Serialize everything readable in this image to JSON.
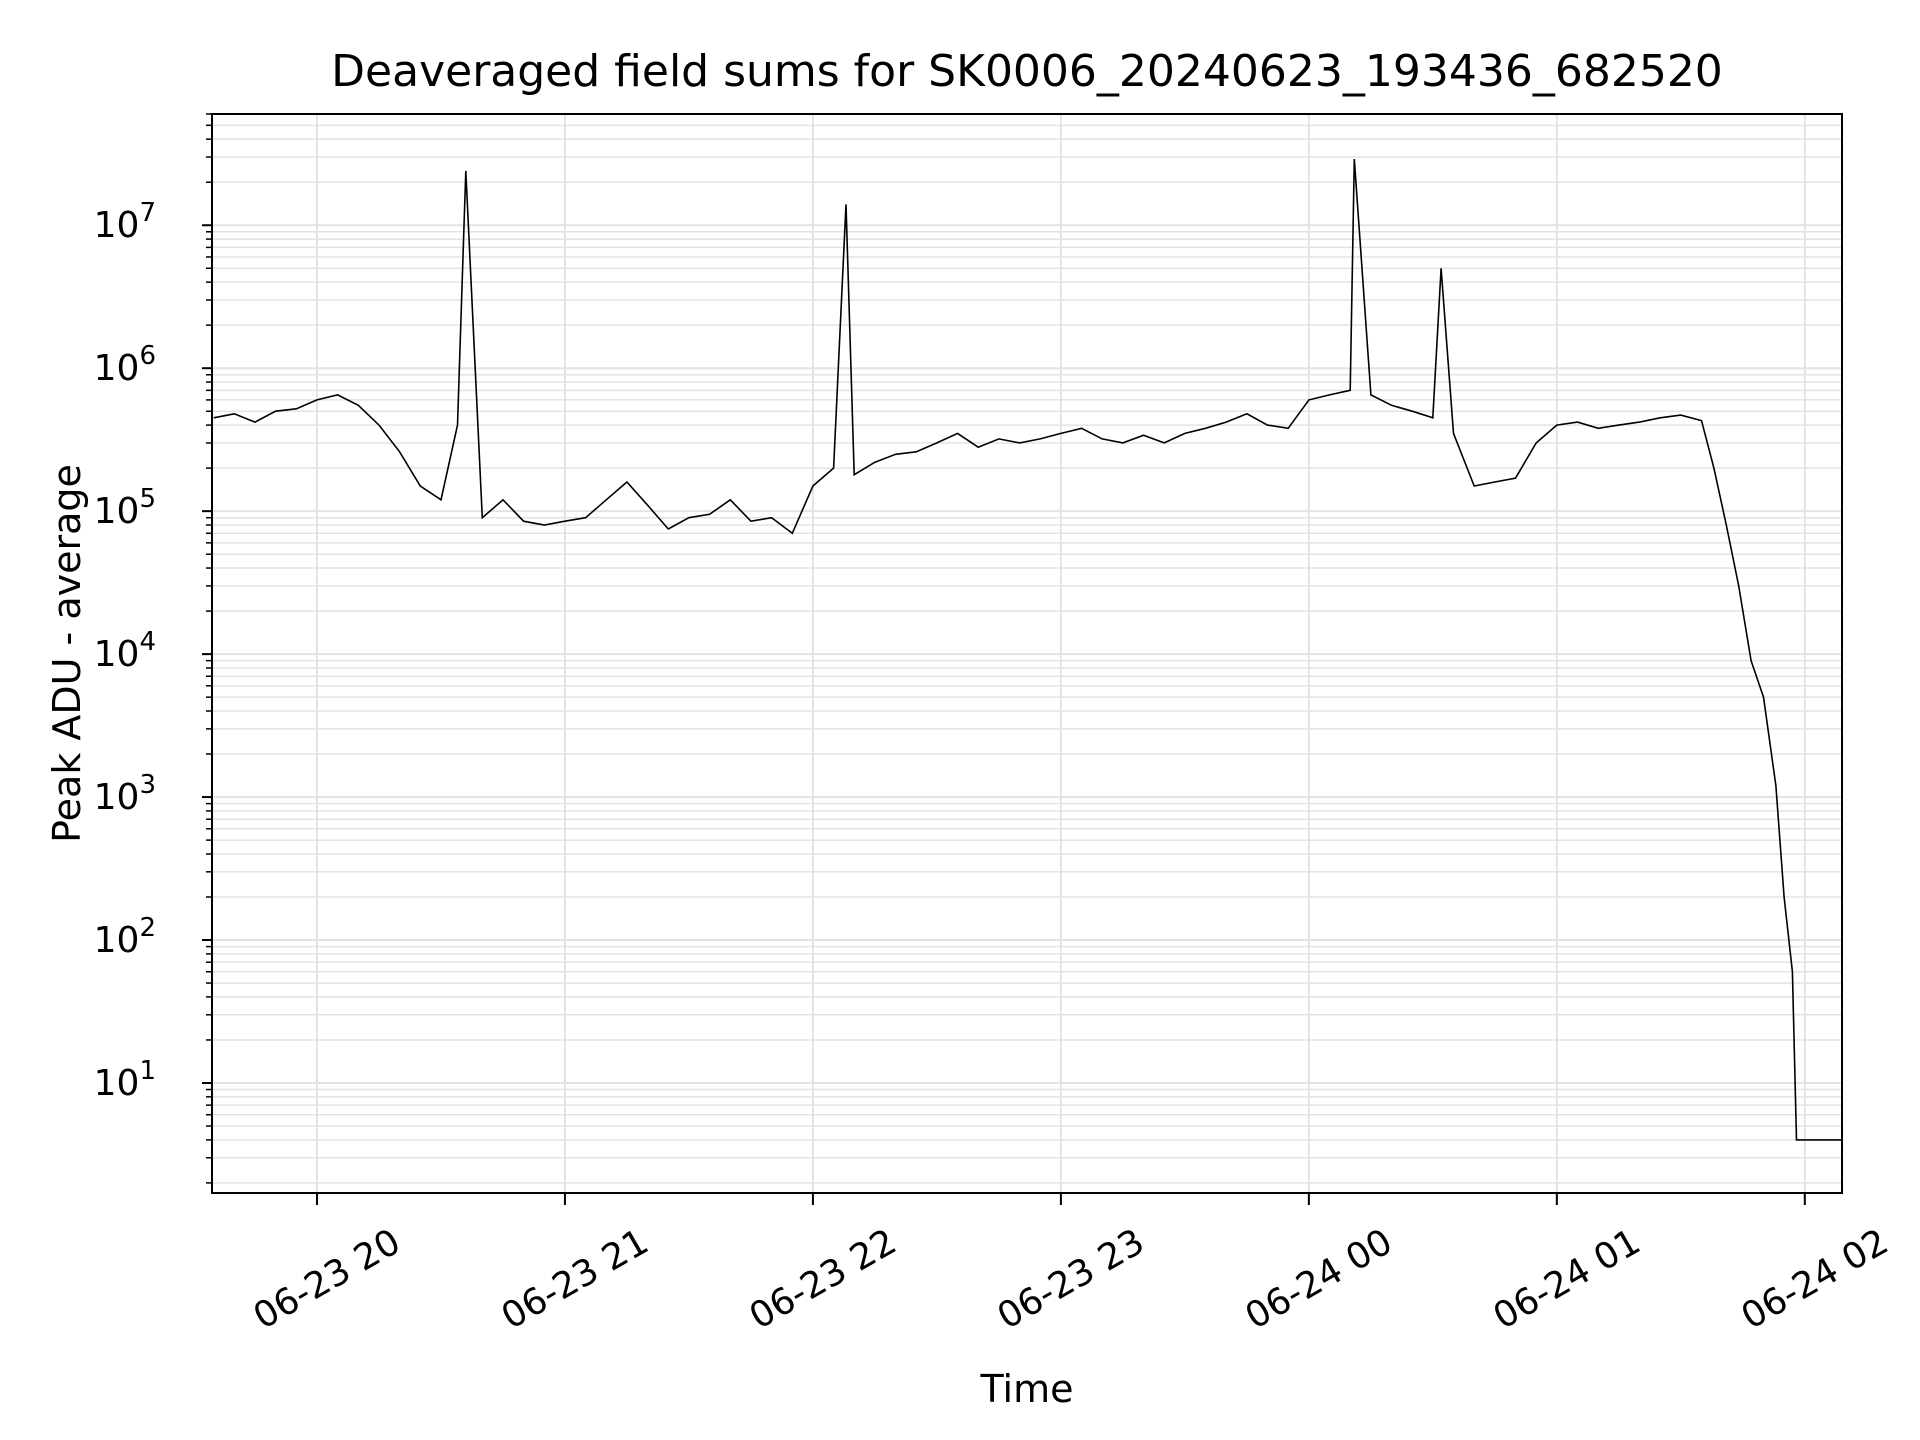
{
  "chart_data": {
    "type": "line",
    "title": "Deaveraged field sums for SK0006_20240623_193436_682520",
    "xlabel": "Time",
    "ylabel": "Peak ADU - average",
    "y_scale": "log",
    "ylim": [
      1.7,
      60000000
    ],
    "xlim": [
      "2024-06-23 19:34:36",
      "2024-06-24 02:09:00"
    ],
    "grid": true,
    "legend": "none",
    "line_color": "#000000",
    "x_ticks": [
      {
        "value": "2024-06-23 20:00",
        "label": "06-23 20"
      },
      {
        "value": "2024-06-23 21:00",
        "label": "06-23 21"
      },
      {
        "value": "2024-06-23 22:00",
        "label": "06-23 22"
      },
      {
        "value": "2024-06-23 23:00",
        "label": "06-23 23"
      },
      {
        "value": "2024-06-24 00:00",
        "label": "06-24 00"
      },
      {
        "value": "2024-06-24 01:00",
        "label": "06-24 01"
      },
      {
        "value": "2024-06-24 02:00",
        "label": "06-24 02"
      }
    ],
    "y_ticks": [
      {
        "value": 10,
        "base": "10",
        "exp": "1"
      },
      {
        "value": 100,
        "base": "10",
        "exp": "2"
      },
      {
        "value": 1000,
        "base": "10",
        "exp": "3"
      },
      {
        "value": 10000,
        "base": "10",
        "exp": "4"
      },
      {
        "value": 100000,
        "base": "10",
        "exp": "5"
      },
      {
        "value": 1000000,
        "base": "10",
        "exp": "6"
      },
      {
        "value": 10000000,
        "base": "10",
        "exp": "7"
      }
    ],
    "series": [
      {
        "x": [
          "2024-06-23 19:35",
          "2024-06-23 19:40",
          "2024-06-23 19:45",
          "2024-06-23 19:50",
          "2024-06-23 19:55",
          "2024-06-23 20:00",
          "2024-06-23 20:05",
          "2024-06-23 20:10",
          "2024-06-23 20:15",
          "2024-06-23 20:20",
          "2024-06-23 20:25",
          "2024-06-23 20:30",
          "2024-06-23 20:34",
          "2024-06-23 20:36",
          "2024-06-23 20:40",
          "2024-06-23 20:45",
          "2024-06-23 20:50",
          "2024-06-23 20:55",
          "2024-06-23 21:00",
          "2024-06-23 21:05",
          "2024-06-23 21:10",
          "2024-06-23 21:15",
          "2024-06-23 21:20",
          "2024-06-23 21:25",
          "2024-06-23 21:30",
          "2024-06-23 21:35",
          "2024-06-23 21:40",
          "2024-06-23 21:45",
          "2024-06-23 21:50",
          "2024-06-23 21:55",
          "2024-06-23 22:00",
          "2024-06-23 22:05",
          "2024-06-23 22:08",
          "2024-06-23 22:10",
          "2024-06-23 22:15",
          "2024-06-23 22:20",
          "2024-06-23 22:25",
          "2024-06-23 22:30",
          "2024-06-23 22:35",
          "2024-06-23 22:40",
          "2024-06-23 22:45",
          "2024-06-23 22:50",
          "2024-06-23 22:55",
          "2024-06-23 23:00",
          "2024-06-23 23:05",
          "2024-06-23 23:10",
          "2024-06-23 23:15",
          "2024-06-23 23:20",
          "2024-06-23 23:25",
          "2024-06-23 23:30",
          "2024-06-23 23:35",
          "2024-06-23 23:40",
          "2024-06-23 23:45",
          "2024-06-23 23:50",
          "2024-06-23 23:55",
          "2024-06-24 00:00",
          "2024-06-24 00:05",
          "2024-06-24 00:10",
          "2024-06-24 00:11",
          "2024-06-24 00:15",
          "2024-06-24 00:20",
          "2024-06-24 00:25",
          "2024-06-24 00:30",
          "2024-06-24 00:32",
          "2024-06-24 00:35",
          "2024-06-24 00:40",
          "2024-06-24 00:45",
          "2024-06-24 00:50",
          "2024-06-24 00:55",
          "2024-06-24 01:00",
          "2024-06-24 01:05",
          "2024-06-24 01:10",
          "2024-06-24 01:15",
          "2024-06-24 01:20",
          "2024-06-24 01:25",
          "2024-06-24 01:30",
          "2024-06-24 01:35",
          "2024-06-24 01:38",
          "2024-06-24 01:41",
          "2024-06-24 01:44",
          "2024-06-24 01:47",
          "2024-06-24 01:50",
          "2024-06-24 01:53",
          "2024-06-24 01:55",
          "2024-06-24 01:57",
          "2024-06-24 01:58",
          "2024-06-24 01:59",
          "2024-06-24 02:00",
          "2024-06-24 02:05",
          "2024-06-24 02:09"
        ],
        "y": [
          450000,
          480000,
          420000,
          500000,
          520000,
          600000,
          650000,
          550000,
          400000,
          260000,
          150000,
          120000,
          400000,
          24000000,
          90000,
          120000,
          85000,
          80000,
          85000,
          90000,
          120000,
          160000,
          110000,
          75000,
          90000,
          95000,
          120000,
          85000,
          90000,
          70000,
          150000,
          200000,
          14000000,
          180000,
          220000,
          250000,
          260000,
          300000,
          350000,
          280000,
          320000,
          300000,
          320000,
          350000,
          380000,
          320000,
          300000,
          340000,
          300000,
          350000,
          380000,
          420000,
          480000,
          400000,
          380000,
          600000,
          650000,
          700000,
          29000000,
          650000,
          550000,
          500000,
          450000,
          5000000,
          350000,
          150000,
          160000,
          170000,
          300000,
          400000,
          420000,
          380000,
          400000,
          420000,
          450000,
          470000,
          430000,
          200000,
          80000,
          30000,
          9000,
          5000,
          1200,
          200,
          60,
          4,
          4,
          4,
          4,
          4
        ]
      }
    ]
  }
}
